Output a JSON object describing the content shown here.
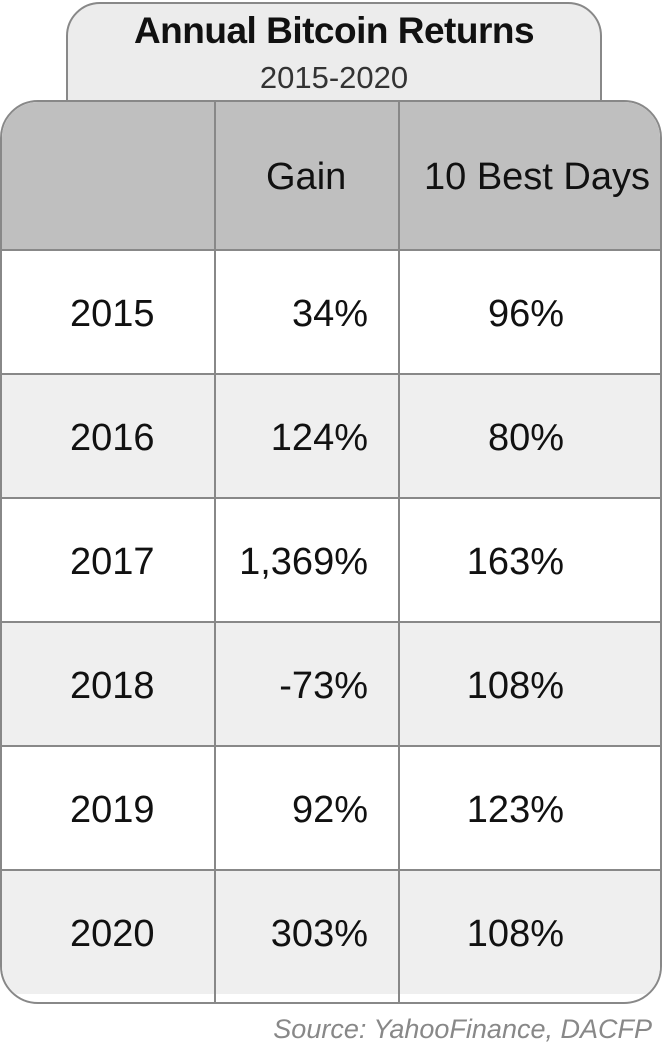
{
  "chart_data": {
    "type": "table",
    "title": "Annual Bitcoin Returns",
    "subtitle": "2015-2020",
    "columns": [
      "",
      "Gain",
      "10 Best Days"
    ],
    "rows": [
      {
        "year": "2015",
        "gain": "34%",
        "best_days": "96%"
      },
      {
        "year": "2016",
        "gain": "124%",
        "best_days": "80%"
      },
      {
        "year": "2017",
        "gain": "1,369%",
        "best_days": "163%"
      },
      {
        "year": "2018",
        "gain": "-73%",
        "best_days": "108%"
      },
      {
        "year": "2019",
        "gain": "92%",
        "best_days": "123%"
      },
      {
        "year": "2020",
        "gain": "303%",
        "best_days": "108%"
      }
    ],
    "source": "Source: YahooFinance, DACFP"
  },
  "colors": {
    "header_fill": "#bfbfbf",
    "alt_row_fill": "#efefef",
    "border": "#888888",
    "source_text": "#888888"
  }
}
